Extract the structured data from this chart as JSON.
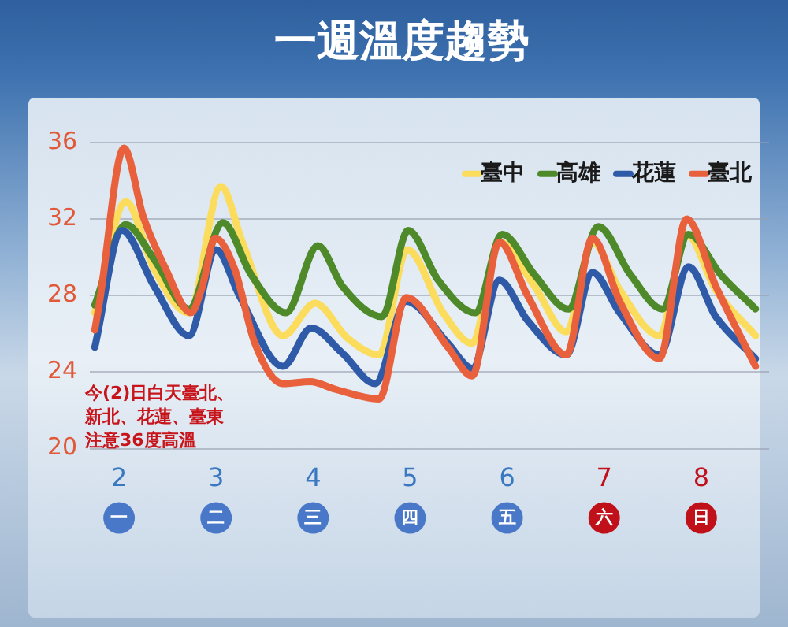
{
  "chart_data": {
    "type": "line",
    "title": "一週溫度趨勢",
    "xlim": [
      1.7,
      8.7
    ],
    "xticks": [
      2,
      3,
      4,
      5,
      6,
      7,
      8
    ],
    "ylim": [
      20,
      36
    ],
    "yticks": [
      20,
      24,
      28,
      32,
      36
    ],
    "grid": "y",
    "legend": "top right",
    "marker": "none",
    "line_style": "solid",
    "annotations": [
      "今(2)日白天臺北、新北、花蓮、臺東注意36度高溫",
      "一",
      "二",
      "三",
      "四",
      "五",
      "六",
      "日"
    ],
    "series": [
      {
        "name": "臺中",
        "color": "#fbdc5c",
        "x": [
          1.75,
          2.07,
          2.36,
          2.72,
          3.05,
          3.27,
          3.69,
          4.02,
          4.35,
          4.68,
          4.97,
          5.34,
          5.64,
          5.92,
          6.28,
          6.61,
          6.88,
          7.16,
          7.57,
          7.85,
          8.15,
          8.56
        ],
        "values": [
          27.1,
          32.9,
          29.4,
          27.1,
          33.7,
          30.8,
          25.9,
          27.6,
          25.8,
          24.9,
          30.4,
          27.1,
          25.5,
          30.8,
          28.5,
          26.1,
          30.8,
          28.3,
          25.9,
          31.2,
          28.3,
          25.9
        ]
      },
      {
        "name": "高雄",
        "color": "#4e8a2a",
        "x": [
          1.75,
          2.07,
          2.36,
          2.72,
          3.07,
          3.36,
          3.72,
          4.05,
          4.3,
          4.71,
          4.98,
          5.29,
          5.67,
          5.95,
          6.28,
          6.63,
          6.94,
          7.27,
          7.6,
          7.87,
          8.2,
          8.56
        ],
        "values": [
          27.5,
          31.7,
          29.9,
          27.3,
          31.8,
          29.1,
          27.1,
          30.6,
          28.5,
          26.9,
          31.4,
          28.8,
          27.1,
          31.2,
          29.1,
          27.3,
          31.6,
          29.1,
          27.3,
          31.2,
          29.1,
          27.3
        ]
      },
      {
        "name": "花蓮",
        "color": "#2f5aa8",
        "x": [
          1.75,
          2.03,
          2.36,
          2.72,
          3.0,
          3.24,
          3.69,
          3.98,
          4.3,
          4.64,
          4.96,
          5.39,
          5.64,
          5.92,
          6.21,
          6.61,
          6.88,
          7.16,
          7.57,
          7.87,
          8.15,
          8.56
        ],
        "values": [
          25.3,
          31.4,
          28.5,
          25.9,
          30.4,
          28.0,
          24.3,
          26.3,
          25.0,
          23.4,
          27.7,
          25.5,
          24.2,
          28.8,
          26.7,
          24.9,
          29.2,
          27.1,
          24.9,
          29.5,
          26.9,
          24.7
        ]
      },
      {
        "name": "臺北",
        "color": "#e8603c",
        "x": [
          1.75,
          1.8,
          2.05,
          2.25,
          2.48,
          2.74,
          2.86,
          2.99,
          3.19,
          3.4,
          3.69,
          3.97,
          4.23,
          4.68,
          4.96,
          5.39,
          5.64,
          5.92,
          6.21,
          6.61,
          6.88,
          7.16,
          7.57,
          7.85,
          8.15,
          8.56
        ],
        "values": [
          26.2,
          27.7,
          35.7,
          32.1,
          29.4,
          27.1,
          28.5,
          31.0,
          29.4,
          25.5,
          23.4,
          23.5,
          23.1,
          22.6,
          27.9,
          25.3,
          23.8,
          30.8,
          28.0,
          24.9,
          31.0,
          27.7,
          24.7,
          32.0,
          28.5,
          24.3
        ]
      }
    ]
  }
}
